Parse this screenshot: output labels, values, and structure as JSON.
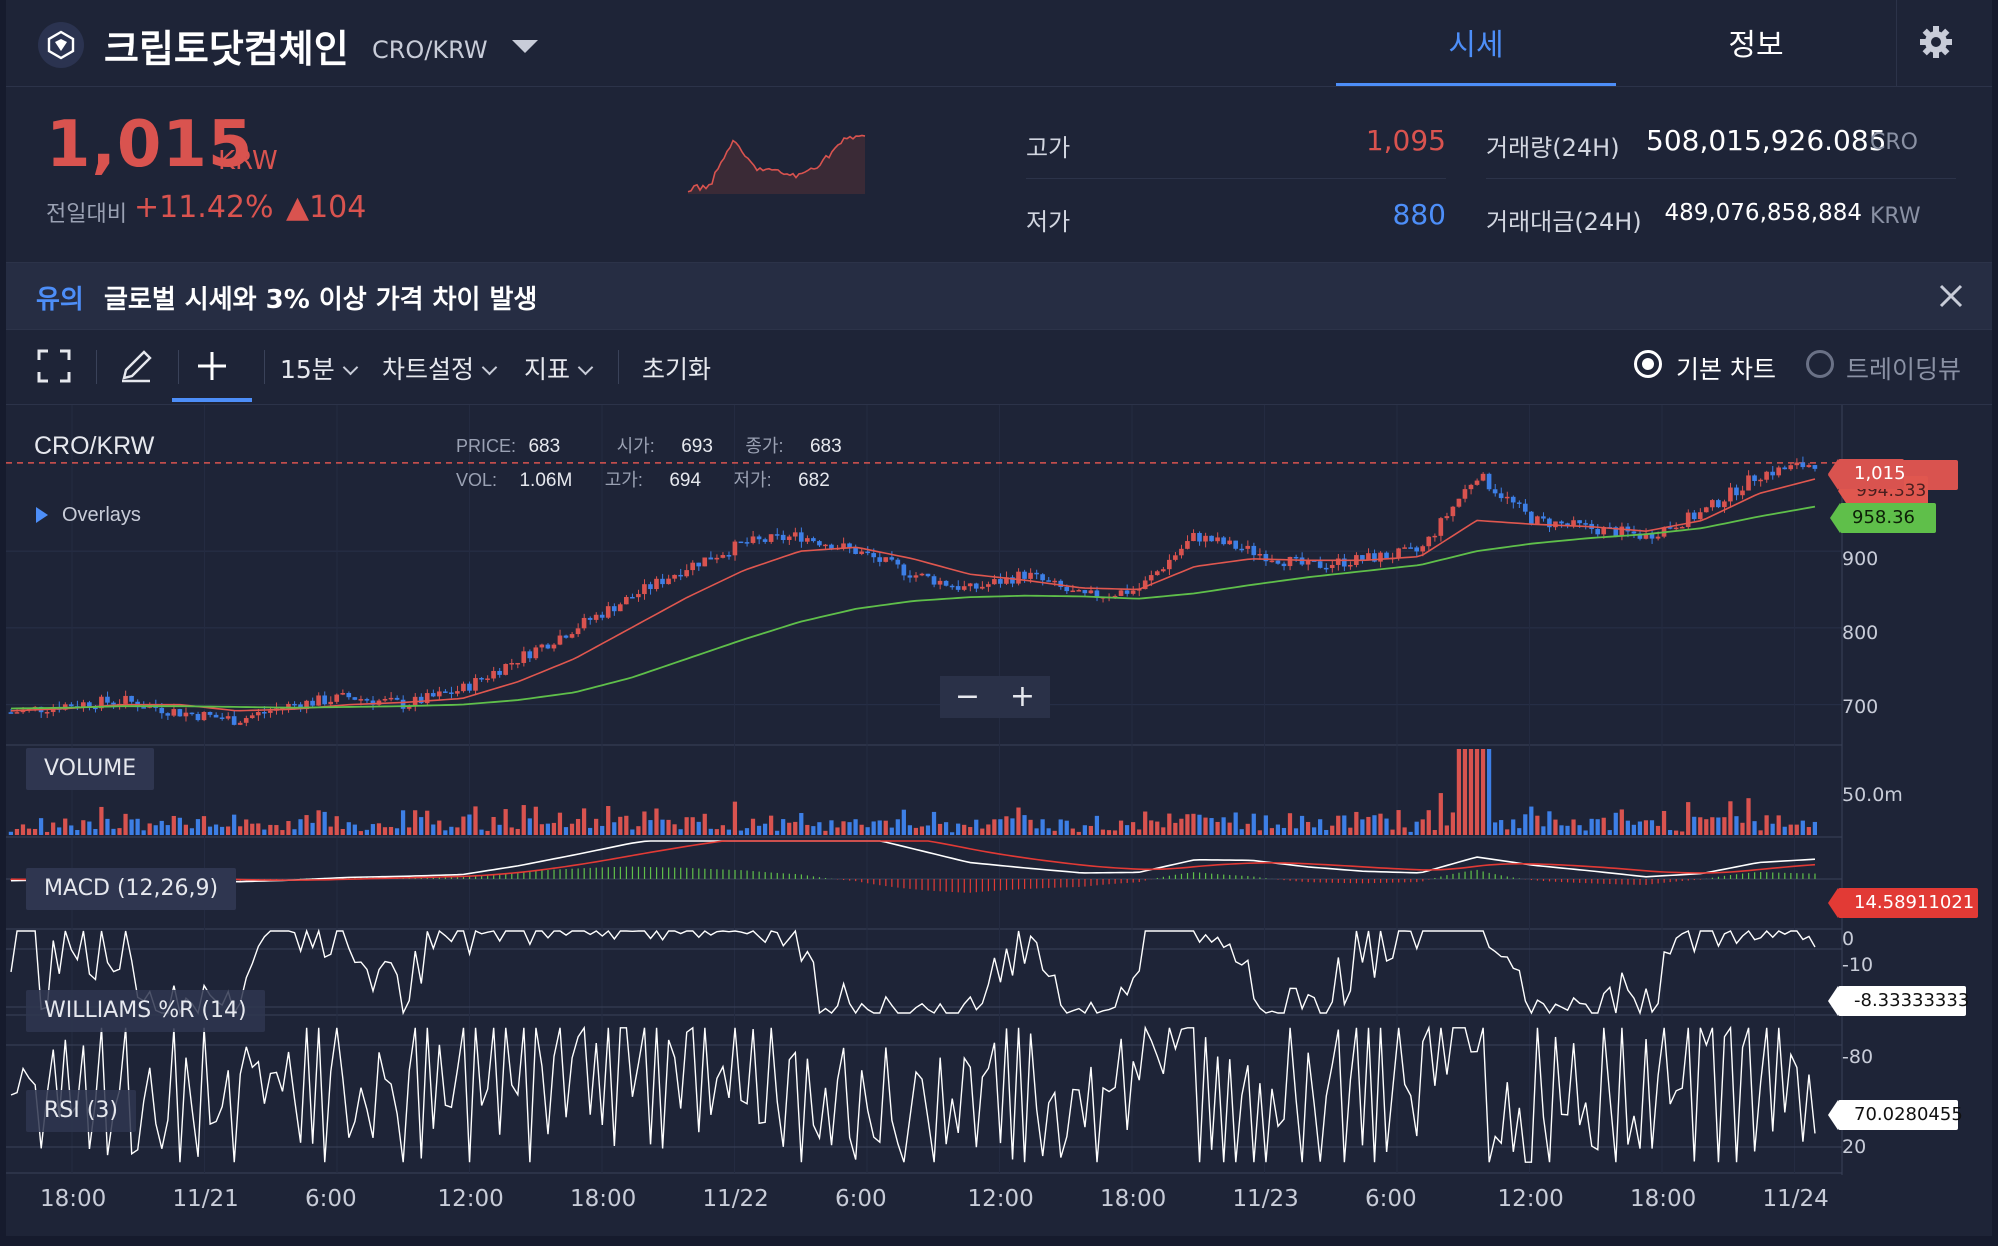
{
  "header": {
    "coin_name": "크립토닷컴체인",
    "pair": "CRO/KRW",
    "tabs": [
      {
        "label": "시세"
      },
      {
        "label": "정보"
      }
    ]
  },
  "price_panel": {
    "price": "1,015",
    "unit": "KRW",
    "change_label": "전일대비",
    "change_pct": "+11.42%",
    "change_amount": "▲104",
    "stats": {
      "high_label": "고가",
      "high_value": "1,095",
      "low_label": "저가",
      "low_value": "880",
      "volume_label": "거래량(24H)",
      "volume_value": "508,015,926.085",
      "volume_unit": "CRO",
      "amount_label": "거래대금(24H)",
      "amount_value": "489,076,858,884",
      "amount_unit": "KRW"
    }
  },
  "notice": {
    "tag": "유의",
    "text": "글로벌 시세와 3% 이상 가격 차이 발생"
  },
  "toolbar": {
    "interval": "15분",
    "chart_settings": "차트설정",
    "indicators": "지표",
    "reset": "초기화",
    "basic_chart": "기본 차트",
    "tradingview": "트레이딩뷰"
  },
  "chart": {
    "symbol": "CRO/KRW",
    "overlays_label": "Overlays",
    "legend": {
      "price_k": "PRICE:",
      "price_v": "683",
      "open_k": "시가:",
      "open_v": "693",
      "close_k": "종가:",
      "close_v": "683",
      "vol_k": "VOL:",
      "vol_v": "1.06M",
      "high_k": "고가:",
      "high_v": "694",
      "low_k": "저가:",
      "low_v": "682"
    },
    "price_ticks": [
      "900",
      "800",
      "700"
    ],
    "price_tags": {
      "current": "1,015",
      "ma_short": "994.333",
      "ma_long": "958.36"
    },
    "volume_label": "VOLUME",
    "volume_tick": "50.0m",
    "macd_label": "MACD (12,26,9)",
    "macd_tag": "14.58911021",
    "macd_ticks": [
      "0",
      "-10"
    ],
    "williams_label": "WILLIAMS %R (14)",
    "williams_tag": "-8.33333333",
    "williams_tick": "-80",
    "rsi_label": "RSI (3)",
    "rsi_tag": "70.0280455",
    "rsi_tick": "20",
    "x_ticks": [
      "18:00",
      "11/21",
      "6:00",
      "12:00",
      "18:00",
      "11/22",
      "6:00",
      "12:00",
      "18:00",
      "11/23",
      "6:00",
      "12:00",
      "18:00",
      "11/24"
    ],
    "colors": {
      "up": "#d9534f",
      "down": "#3d7fe6",
      "ma_short": "#e0574f",
      "ma_long": "#5fbf4a",
      "macd": "#ffffff",
      "signal": "#e23a35"
    }
  },
  "chart_data": {
    "type": "line",
    "series": [
      {
        "name": "CRO/KRW",
        "values": [
          690,
          700,
          705,
          690,
          680,
          700,
          710,
          700,
          720,
          760,
          800,
          840,
          880,
          910,
          920,
          900,
          870,
          850,
          870,
          840,
          850,
          920,
          900,
          880,
          890,
          900,
          1000,
          940,
          930,
          920,
          950,
          1000,
          1015
        ]
      },
      {
        "name": "MA",
        "values": [
          692,
          695,
          700,
          700,
          692,
          694,
          700,
          703,
          708,
          730,
          760,
          800,
          840,
          875,
          900,
          905,
          890,
          870,
          862,
          852,
          850,
          880,
          890,
          888,
          888,
          893,
          940,
          935,
          932,
          926,
          940,
          975,
          994
        ]
      },
      {
        "name": "MA",
        "values": [
          695,
          696,
          698,
          698,
          697,
          696,
          697,
          698,
          700,
          706,
          716,
          735,
          760,
          785,
          808,
          825,
          835,
          840,
          842,
          841,
          838,
          845,
          856,
          866,
          874,
          882,
          900,
          910,
          917,
          922,
          930,
          945,
          958
        ]
      }
    ],
    "ylim": [
      650,
      1080
    ]
  }
}
